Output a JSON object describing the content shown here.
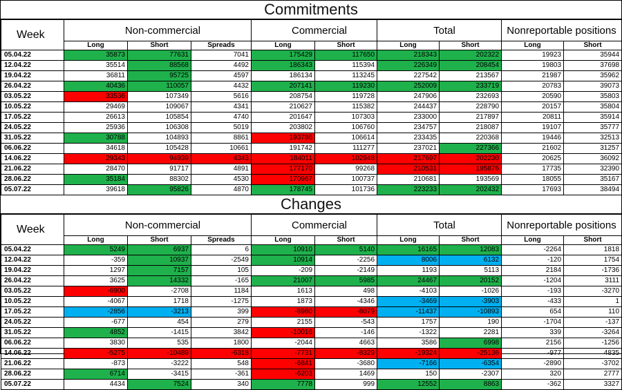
{
  "commitments": {
    "title": "Commitments",
    "headers": {
      "week": "Week",
      "noncommercial": "Non-commercial",
      "commercial": "Commercial",
      "total": "Total",
      "nonreportable": "Nonreportable positions",
      "sub": [
        "Long",
        "Short",
        "Spreads",
        "Long",
        "Short",
        "Long",
        "Short",
        "Long",
        "Short"
      ]
    },
    "rows": [
      {
        "week": "05.04.22",
        "cells": [
          "35873",
          "77631",
          "7041",
          "175429",
          "117650",
          "218343",
          "202322",
          "19923",
          "35944"
        ],
        "hl": [
          "g",
          "g",
          "",
          "g",
          "g",
          "g",
          "g",
          "",
          ""
        ]
      },
      {
        "week": "12.04.22",
        "cells": [
          "35514",
          "88568",
          "4492",
          "186343",
          "115394",
          "226349",
          "208454",
          "19803",
          "37698"
        ],
        "hl": [
          "",
          "g",
          "",
          "g",
          "",
          "g",
          "g",
          "",
          ""
        ]
      },
      {
        "week": "19.04.22",
        "cells": [
          "36811",
          "95725",
          "4597",
          "186134",
          "113245",
          "227542",
          "213567",
          "21987",
          "35962"
        ],
        "hl": [
          "",
          "g",
          "",
          "",
          "",
          "",
          "",
          "",
          ""
        ]
      },
      {
        "week": "26.04.22",
        "cells": [
          "40436",
          "110057",
          "4432",
          "207141",
          "119230",
          "252009",
          "233719",
          "20783",
          "39073"
        ],
        "hl": [
          "g",
          "g",
          "",
          "g",
          "g",
          "g",
          "g",
          "",
          ""
        ]
      },
      {
        "week": "03.05.22",
        "cells": [
          "33536",
          "107349",
          "5616",
          "208754",
          "119728",
          "247906",
          "232693",
          "20590",
          "35803"
        ],
        "hl": [
          "r",
          "",
          "",
          "",
          "",
          "",
          "",
          "",
          ""
        ]
      },
      {
        "week": "10.05.22",
        "cells": [
          "29469",
          "109067",
          "4341",
          "210627",
          "115382",
          "244437",
          "228790",
          "20157",
          "35804"
        ],
        "hl": [
          "",
          "",
          "",
          "",
          "",
          "",
          "",
          "",
          ""
        ]
      },
      {
        "week": "17.05.22",
        "cells": [
          "26613",
          "105854",
          "4740",
          "201647",
          "107303",
          "233000",
          "217897",
          "20811",
          "35914"
        ],
        "hl": [
          "",
          "",
          "",
          "",
          "",
          "",
          "",
          "",
          ""
        ]
      },
      {
        "week": "24.05.22",
        "cells": [
          "25936",
          "106308",
          "5019",
          "203802",
          "106760",
          "234757",
          "218087",
          "19107",
          "35777"
        ],
        "hl": [
          "",
          "",
          "",
          "",
          "",
          "",
          "",
          "",
          ""
        ]
      },
      {
        "week": "31.05.22",
        "cells": [
          "30788",
          "104893",
          "8861",
          "193786",
          "106614",
          "233435",
          "220368",
          "19446",
          "32513"
        ],
        "hl": [
          "g",
          "",
          "",
          "r",
          "",
          "",
          "",
          "",
          ""
        ]
      },
      {
        "week": "06.06.22",
        "cells": [
          "34618",
          "105428",
          "10661",
          "191742",
          "111277",
          "237021",
          "227366",
          "21602",
          "31257"
        ],
        "hl": [
          "",
          "",
          "",
          "",
          "",
          "",
          "g",
          "",
          ""
        ]
      },
      {
        "week": "14.06.22",
        "cells": [
          "29343",
          "94939",
          "4343",
          "184011",
          "102948",
          "217697",
          "202230",
          "20625",
          "36092"
        ],
        "hl": [
          "r",
          "r",
          "r",
          "r",
          "r",
          "r",
          "r",
          "",
          ""
        ]
      },
      {
        "week": "21.06.22",
        "cells": [
          "28470",
          "91717",
          "4891",
          "177170",
          "99268",
          "210531",
          "195876",
          "17735",
          "32390"
        ],
        "hl": [
          "",
          "",
          "",
          "r",
          "",
          "r",
          "r",
          "",
          ""
        ]
      },
      {
        "week": "28.06.22",
        "cells": [
          "35184",
          "88302",
          "4530",
          "170967",
          "100737",
          "210681",
          "193569",
          "18055",
          "35167"
        ],
        "hl": [
          "g",
          "",
          "",
          "r",
          "",
          "",
          "",
          "",
          ""
        ]
      },
      {
        "week": "05.07.22",
        "cells": [
          "39618",
          "95826",
          "4870",
          "178745",
          "101736",
          "223233",
          "202432",
          "17693",
          "38494"
        ],
        "hl": [
          "",
          "g",
          "",
          "g",
          "",
          "g",
          "g",
          "",
          ""
        ]
      }
    ]
  },
  "changes": {
    "title": "Changes",
    "rows": [
      {
        "week": "05.04.22",
        "cells": [
          "5249",
          "6937",
          "6",
          "10910",
          "5140",
          "16165",
          "12083",
          "-2264",
          "1818"
        ],
        "hl": [
          "g",
          "g",
          "",
          "g",
          "g",
          "g",
          "g",
          "",
          ""
        ]
      },
      {
        "week": "12.04.22",
        "cells": [
          "-359",
          "10937",
          "-2549",
          "10914",
          "-2256",
          "8006",
          "6132",
          "-120",
          "1754"
        ],
        "hl": [
          "",
          "g",
          "",
          "g",
          "",
          "b",
          "b",
          "",
          ""
        ]
      },
      {
        "week": "19.04.22",
        "cells": [
          "1297",
          "7157",
          "105",
          "-209",
          "-2149",
          "1193",
          "5113",
          "2184",
          "-1736"
        ],
        "hl": [
          "",
          "g",
          "",
          "",
          "",
          "",
          "",
          "",
          ""
        ]
      },
      {
        "week": "26.04.22",
        "cells": [
          "3625",
          "14332",
          "-165",
          "21007",
          "5985",
          "24467",
          "20152",
          "-1204",
          "3111"
        ],
        "hl": [
          "",
          "g",
          "",
          "g",
          "g",
          "g",
          "g",
          "",
          ""
        ]
      },
      {
        "week": "03.05.22",
        "cells": [
          "-6900",
          "-2708",
          "1184",
          "1613",
          "498",
          "-4103",
          "-1026",
          "-193",
          "-3270"
        ],
        "hl": [
          "r",
          "",
          "",
          "",
          "",
          "",
          "",
          "",
          ""
        ]
      },
      {
        "week": "10.05.22",
        "cells": [
          "-4067",
          "1718",
          "-1275",
          "1873",
          "-4346",
          "-3469",
          "-3903",
          "-433",
          "1"
        ],
        "hl": [
          "",
          "",
          "",
          "",
          "",
          "b",
          "b",
          "",
          ""
        ]
      },
      {
        "week": "17.05.22",
        "cells": [
          "-2856",
          "-3213",
          "399",
          "-8980",
          "-8079",
          "-11437",
          "-10893",
          "654",
          "110"
        ],
        "hl": [
          "b",
          "b",
          "",
          "r",
          "r",
          "b",
          "b",
          "",
          ""
        ]
      },
      {
        "week": "24.05.22",
        "cells": [
          "-677",
          "454",
          "279",
          "2155",
          "-543",
          "1757",
          "190",
          "-1704",
          "-137"
        ],
        "hl": [
          "",
          "",
          "",
          "",
          "",
          "",
          "",
          "",
          ""
        ]
      },
      {
        "week": "31.05.22",
        "cells": [
          "4852",
          "-1415",
          "3842",
          "-10016",
          "-146",
          "-1322",
          "2281",
          "339",
          "-3264"
        ],
        "hl": [
          "g",
          "",
          "",
          "r",
          "",
          "",
          "",
          "",
          ""
        ]
      },
      {
        "week": "06.06.22",
        "cells": [
          "3830",
          "535",
          "1800",
          "-2044",
          "4663",
          "3586",
          "6998",
          "2156",
          "-1256"
        ],
        "hl": [
          "",
          "",
          "",
          "",
          "",
          "",
          "g",
          "",
          ""
        ]
      },
      {
        "week": "14.06.22",
        "cells": [
          "-5275",
          "-10489",
          "-6318",
          "-7731",
          "-8329",
          "-19324",
          "-25136",
          "-977",
          "4835"
        ],
        "hl": [
          "r",
          "r",
          "r",
          "r",
          "r",
          "r",
          "r",
          "",
          ""
        ]
      },
      {
        "week": "21.06.22",
        "cells": [
          "-873",
          "-3222",
          "548",
          "-6841",
          "-3680",
          "-7166",
          "-6354",
          "-2890",
          "-3702"
        ],
        "hl": [
          "",
          "",
          "",
          "r",
          "",
          "b",
          "b",
          "",
          ""
        ]
      },
      {
        "week": "28.06.22",
        "cells": [
          "6714",
          "-3415",
          "-361",
          "-6203",
          "1469",
          "150",
          "-2307",
          "320",
          "2777"
        ],
        "hl": [
          "g",
          "",
          "",
          "r",
          "",
          "",
          "",
          "",
          ""
        ]
      },
      {
        "week": "05.07.22",
        "cells": [
          "4434",
          "7524",
          "340",
          "7778",
          "999",
          "12552",
          "8863",
          "-362",
          "3327"
        ],
        "hl": [
          "",
          "g",
          "",
          "g",
          "",
          "g",
          "g",
          "",
          ""
        ]
      }
    ]
  },
  "colors": {
    "g": "#1fb14c",
    "r": "#ff0000",
    "b": "#00b0f0"
  }
}
